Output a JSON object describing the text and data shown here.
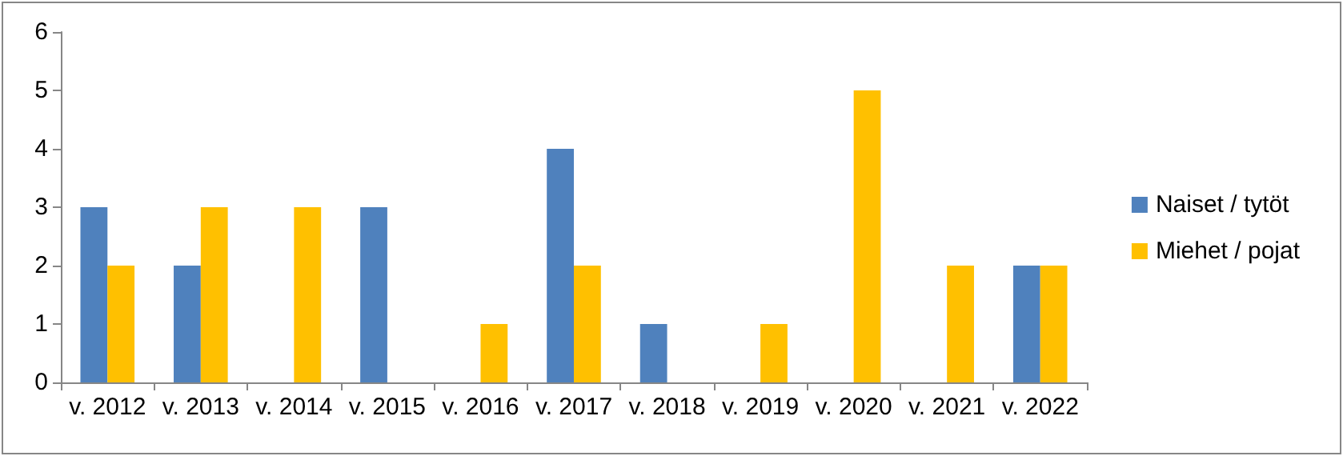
{
  "chart_data": {
    "type": "bar",
    "categories": [
      "v. 2012",
      "v. 2013",
      "v. 2014",
      "v. 2015",
      "v. 2016",
      "v. 2017",
      "v. 2018",
      "v. 2019",
      "v. 2020",
      "v. 2021",
      "v. 2022"
    ],
    "series": [
      {
        "name": "Naiset / tytöt",
        "color": "#4f81bd",
        "values": [
          3,
          2,
          0,
          3,
          0,
          4,
          1,
          0,
          0,
          0,
          2
        ]
      },
      {
        "name": "Miehet / pojat",
        "color": "#ffc000",
        "values": [
          2,
          3,
          3,
          0,
          1,
          2,
          0,
          1,
          5,
          2,
          2
        ]
      }
    ],
    "ylim": [
      0,
      6
    ],
    "yticks": [
      0,
      1,
      2,
      3,
      4,
      5,
      6
    ],
    "grid": false,
    "legend": "right"
  }
}
